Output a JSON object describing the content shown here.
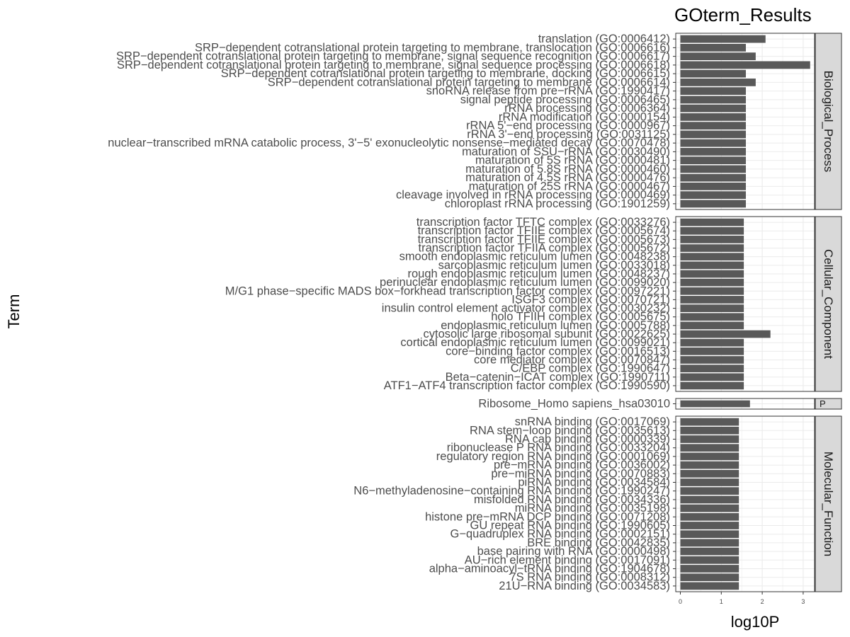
{
  "chart_data": {
    "type": "bar",
    "orientation": "horizontal",
    "title": "GOterm_Results",
    "xlabel": "log10P",
    "ylabel": "Term",
    "xlim": [
      0,
      3.3
    ],
    "x_ticks": [
      0,
      1,
      2,
      3
    ],
    "grid": true,
    "bar_color": "#595959",
    "panels": [
      {
        "label": "Biological_Process",
        "categories": [
          "translation (GO:0006412)",
          "SRP−dependent cotranslational protein targeting to membrane, translocation (GO:0006616)",
          "SRP−dependent cotranslational protein targeting to membrane, signal sequence recognition (GO:0006617)",
          "SRP−dependent cotranslational protein targeting to membrane, signal sequence processing (GO:0006618)",
          "SRP−dependent cotranslational protein targeting to membrane, docking (GO:0006615)",
          "SRP−dependent cotranslational protein targeting to membrane (GO:0006614)",
          "snoRNA release from pre−rRNA (GO:1990417)",
          "signal peptide processing (GO:0006465)",
          "rRNA processing (GO:0006364)",
          "rRNA modification (GO:0000154)",
          "rRNA 5'−end processing (GO:0000967)",
          "rRNA 3'−end processing (GO:0031125)",
          "nuclear−transcribed mRNA catabolic process, 3'−5' exonucleolytic nonsense−mediated decay (GO:0070478)",
          "maturation of SSU−rRNA (GO:0030490)",
          "maturation of 5S rRNA (GO:0000481)",
          "maturation of 5.8S rRNA (GO:0000460)",
          "maturation of 4.5S rRNA (GO:0000476)",
          "maturation of 25S rRNA (GO:0000467)",
          "cleavage involved in rRNA processing (GO:0000469)",
          "chloroplast rRNA processing (GO:1901259)"
        ],
        "values": [
          2.08,
          1.6,
          1.84,
          3.17,
          1.6,
          1.84,
          1.6,
          1.6,
          1.6,
          1.6,
          1.6,
          1.6,
          1.6,
          1.6,
          1.6,
          1.6,
          1.6,
          1.6,
          1.6,
          1.6
        ]
      },
      {
        "label": "Cellular_Component",
        "categories": [
          "transcription factor TFTC complex (GO:0033276)",
          "transcription factor TFIIE complex (GO:0005674)",
          "transcription factor TFIIE complex (GO:0005673)",
          "transcription factor TFIIA complex (GO:0005672)",
          "smooth endoplasmic reticulum lumen (GO:0048238)",
          "sarcoplasmic reticulum lumen (GO:0033018)",
          "rough endoplasmic reticulum lumen (GO:0048237)",
          "perinuclear endoplasmic reticulum lumen (GO:0099020)",
          "M/G1 phase−specific MADS box−forkhead transcription factor complex (GO:0097221)",
          "ISGF3 complex (GO:0070721)",
          "insulin control element activator complex (GO:0030232)",
          "holo TFIIH complex (GO:0005675)",
          "endoplasmic reticulum lumen (GO:0005788)",
          "cytosolic large ribosomal subunit (GO:0022625)",
          "cortical endoplasmic reticulum lumen (GO:0099021)",
          "core−binding factor complex (GO:0016513)",
          "core mediator complex (GO:0070847)",
          "C/EBP complex (GO:1990647)",
          "Beta−catenin−ICAT complex (GO:1990711)",
          "ATF1−ATF4 transcription factor complex (GO:1990590)"
        ],
        "values": [
          1.55,
          1.55,
          1.55,
          1.55,
          1.55,
          1.55,
          1.55,
          1.55,
          1.55,
          1.55,
          1.55,
          1.55,
          1.55,
          2.2,
          1.55,
          1.55,
          1.55,
          1.55,
          1.55,
          1.55
        ]
      },
      {
        "label": "P",
        "categories": [
          "Ribosome_Homo sapiens_hsa03010"
        ],
        "values": [
          1.7
        ]
      },
      {
        "label": "Molecular_Function",
        "categories": [
          "snRNA binding (GO:0017069)",
          "RNA stem−loop binding (GO:0035613)",
          "RNA cap binding (GO:0000339)",
          "ribonuclease P RNA binding (GO:0033204)",
          "regulatory region RNA binding (GO:0001069)",
          "pre−mRNA binding (GO:0036002)",
          "pre−miRNA binding (GO:0070883)",
          "piRNA binding (GO:0034584)",
          "N6−methyladenosine−containing RNA binding (GO:1990247)",
          "misfolded RNA binding (GO:0034336)",
          "miRNA binding (GO:0035198)",
          "histone pre−mRNA DCP binding (GO:0071208)",
          "GU repeat RNA binding (GO:1990605)",
          "G−quadruplex RNA binding (GO:0002151)",
          "BRE binding (GO:0042835)",
          "base pairing with RNA (GO:0000498)",
          "AU−rich element binding (GO:0017091)",
          "alpha−aminoacyl−tRNA binding (GO:1904678)",
          "7S RNA binding (GO:0008312)",
          "21U−RNA binding (GO:0034583)"
        ],
        "values": [
          1.43,
          1.43,
          1.43,
          1.43,
          1.43,
          1.43,
          1.43,
          1.43,
          1.43,
          1.43,
          1.43,
          1.43,
          1.43,
          1.43,
          1.43,
          1.43,
          1.43,
          1.43,
          1.43,
          1.43
        ]
      }
    ]
  }
}
